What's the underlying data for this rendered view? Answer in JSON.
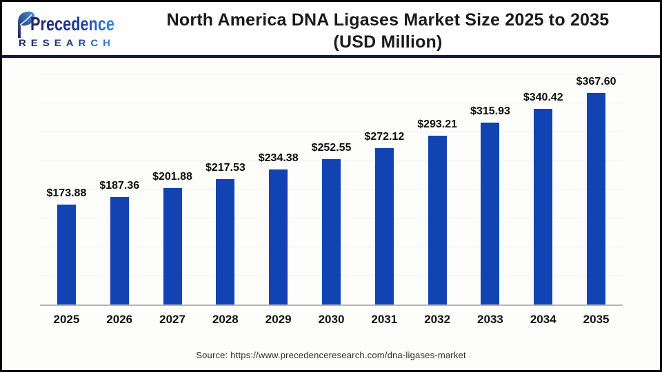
{
  "header": {
    "logo": {
      "line1": "Precedence",
      "line2": "RESEARCH"
    },
    "title": "North America DNA Ligases Market Size 2025 to 2035",
    "subtitle": "(USD Million)"
  },
  "chart_data": {
    "type": "bar",
    "categories": [
      "2025",
      "2026",
      "2027",
      "2028",
      "2029",
      "2030",
      "2031",
      "2032",
      "2033",
      "2034",
      "2035"
    ],
    "values": [
      173.88,
      187.36,
      201.88,
      217.53,
      234.38,
      252.55,
      272.12,
      293.21,
      315.93,
      340.42,
      367.6
    ],
    "title": "North America DNA Ligases Market Size 2025 to 2035",
    "subtitle": "(USD Million)",
    "xlabel": "",
    "ylabel": "",
    "ylim": [
      0,
      400
    ],
    "grid_step": 50,
    "grid": true,
    "legend": false,
    "value_prefix": "$",
    "bar_color": "#1243b3"
  },
  "colors": {
    "bar": "#1243b3",
    "divider_navy": "#15153f",
    "logo_navy": "#1e2763",
    "logo_blue": "#3d85e2"
  },
  "footer": {
    "source": "Source: https://www.precedenceresearch.com/dna-ligases-market"
  }
}
